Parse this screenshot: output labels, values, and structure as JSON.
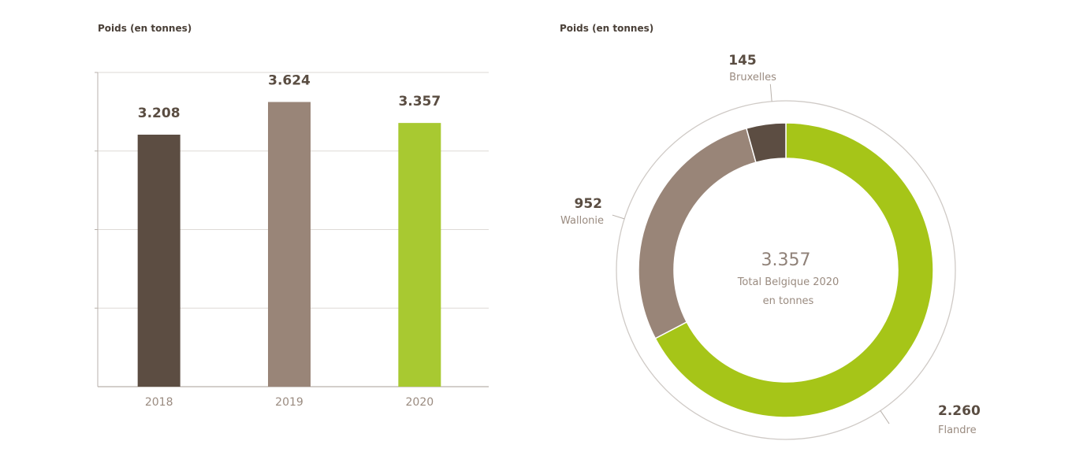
{
  "chart_data": [
    {
      "type": "bar",
      "title": "Poids (en tonnes)",
      "categories": [
        "2018",
        "2019",
        "2020"
      ],
      "values": [
        3208,
        3624,
        3357
      ],
      "value_labels": [
        "3.208",
        "3.624",
        "3.357"
      ],
      "colors": [
        "#5c4d42",
        "#998578",
        "#a8c931"
      ],
      "ylim": [
        0,
        4000
      ],
      "grid": true,
      "xlabel": "",
      "ylabel": ""
    },
    {
      "type": "pie",
      "title": "Poids (en tonnes)",
      "slices": [
        {
          "label": "Flandre",
          "value": 2260,
          "value_label": "2.260",
          "color": "#a6c518"
        },
        {
          "label": "Wallonie",
          "value": 952,
          "value_label": "952",
          "color": "#998578"
        },
        {
          "label": "Bruxelles",
          "value": 145,
          "value_label": "145",
          "color": "#5c4d42"
        }
      ],
      "center_value": "3.357",
      "center_line1": "Total Belgique 2020",
      "center_line2": "en tonnes"
    }
  ]
}
